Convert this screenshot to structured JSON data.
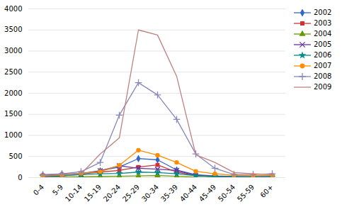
{
  "chart_data": {
    "type": "line",
    "categories": [
      "0-4",
      "5-9",
      "10-14",
      "15-19",
      "20-24",
      "25-29",
      "30-34",
      "35-39",
      "40-44",
      "45-49",
      "50-54",
      "55-59",
      "60+"
    ],
    "series": [
      {
        "name": "2002",
        "color": "#3366CC",
        "marker": "diamond",
        "values": [
          60,
          80,
          100,
          160,
          250,
          450,
          420,
          180,
          70,
          40,
          25,
          25,
          25
        ]
      },
      {
        "name": "2003",
        "color": "#CC3333",
        "marker": "square",
        "values": [
          50,
          70,
          90,
          130,
          170,
          250,
          300,
          130,
          50,
          30,
          20,
          20,
          20
        ]
      },
      {
        "name": "2004",
        "color": "#669900",
        "marker": "triangle",
        "values": [
          10,
          15,
          20,
          25,
          30,
          40,
          50,
          30,
          10,
          5,
          5,
          5,
          5
        ]
      },
      {
        "name": "2005",
        "color": "#663399",
        "marker": "x",
        "values": [
          25,
          40,
          80,
          160,
          280,
          220,
          200,
          170,
          45,
          25,
          15,
          15,
          15
        ]
      },
      {
        "name": "2006",
        "color": "#008B8B",
        "marker": "star",
        "values": [
          30,
          50,
          70,
          90,
          100,
          130,
          120,
          90,
          45,
          25,
          15,
          15,
          15
        ]
      },
      {
        "name": "2007",
        "color": "#FF8C00",
        "marker": "circle",
        "values": [
          40,
          65,
          100,
          140,
          290,
          650,
          530,
          360,
          150,
          90,
          55,
          45,
          55
        ]
      },
      {
        "name": "2008",
        "color": "#8888BB",
        "marker": "plus",
        "values": [
          70,
          90,
          140,
          360,
          1480,
          2250,
          1960,
          1380,
          560,
          220,
          75,
          75,
          90
        ]
      },
      {
        "name": "2009",
        "color": "#C08080",
        "marker": "none",
        "values": [
          40,
          65,
          90,
          560,
          940,
          3500,
          3380,
          2400,
          540,
          360,
          120,
          90,
          70
        ]
      }
    ],
    "ylim": [
      0,
      4000
    ],
    "yticks": [
      0,
      500,
      1000,
      1500,
      2000,
      2500,
      3000,
      3500,
      4000
    ],
    "grid": true,
    "legend": "right"
  }
}
